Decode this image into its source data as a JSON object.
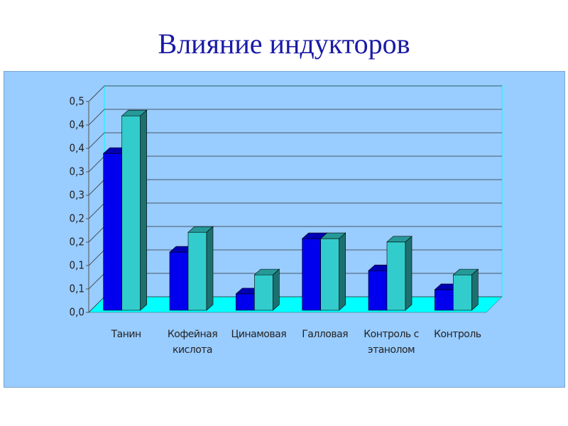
{
  "title": "Влияние индукторов",
  "chart_data": {
    "type": "bar3d",
    "categories": [
      "Танин",
      "Кофейная кислота",
      "Цинамовая",
      "Галловая",
      "Контроль с этанолом",
      "Контроль"
    ],
    "series": [
      {
        "color": "#0000ee",
        "values": [
          0.377,
          0.143,
          0.044,
          0.175,
          0.099,
          0.054
        ]
      },
      {
        "color": "#33cccc",
        "values": [
          0.466,
          0.19,
          0.089,
          0.175,
          0.167,
          0.089
        ]
      }
    ],
    "ylim": [
      0,
      0.5
    ],
    "yticks": [
      {
        "value": 0,
        "label": "0,0"
      },
      {
        "value": 0.0556,
        "label": "0,1"
      },
      {
        "value": 0.1111,
        "label": "0,1"
      },
      {
        "value": 0.1667,
        "label": "0,2"
      },
      {
        "value": 0.2222,
        "label": "0,2"
      },
      {
        "value": 0.2778,
        "label": "0,3"
      },
      {
        "value": 0.3333,
        "label": "0,3"
      },
      {
        "value": 0.3889,
        "label": "0,4"
      },
      {
        "value": 0.4444,
        "label": "0,4"
      },
      {
        "value": 0.5,
        "label": "0,5"
      }
    ],
    "grid": true
  }
}
